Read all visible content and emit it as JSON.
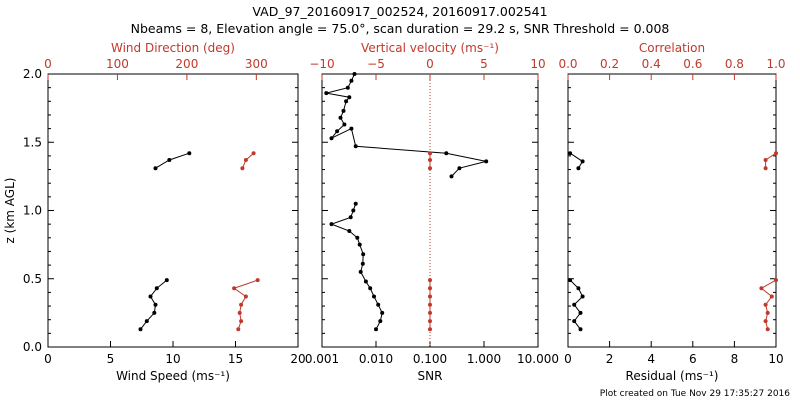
{
  "title_line1": "VAD_97_20160917_002524, 20160917.002541",
  "title_line2": "Nbeams = 8, Elevation angle = 75.0°, scan duration = 29.2 s, SNR Threshold = 0.008",
  "footer": "Plot created on Tue Nov 29 17:35:27 2016",
  "colors": {
    "axis": "#000000",
    "secondary": "#c0392b",
    "primary_series": "#000000"
  },
  "chart_data": [
    {
      "type": "line",
      "ylabel": "z (km AGL)",
      "ylim": [
        0,
        2.0
      ],
      "yticks": [
        "0.0",
        "0.5",
        "1.0",
        "1.5",
        "2.0"
      ],
      "xlabel": "Wind Speed (ms⁻¹)",
      "xlim": [
        0,
        20
      ],
      "xticks": [
        "0",
        "5",
        "10",
        "15",
        "20"
      ],
      "x2label": "Wind Direction (deg)",
      "x2lim": [
        0,
        360
      ],
      "x2ticks": [
        "0",
        "100",
        "200",
        "300"
      ],
      "series": [
        {
          "axis": "bottom",
          "color": "black",
          "points": [
            [
              11.3,
              1.42
            ],
            [
              9.7,
              1.37
            ],
            [
              8.6,
              1.31
            ]
          ]
        },
        {
          "axis": "bottom",
          "color": "black",
          "points": [
            [
              9.5,
              0.49
            ],
            [
              8.7,
              0.43
            ],
            [
              8.2,
              0.37
            ],
            [
              8.6,
              0.31
            ],
            [
              8.5,
              0.25
            ],
            [
              7.9,
              0.19
            ],
            [
              7.4,
              0.13
            ]
          ]
        },
        {
          "axis": "top",
          "color": "red",
          "points": [
            [
              296,
              1.42
            ],
            [
              285,
              1.37
            ],
            [
              280,
              1.31
            ]
          ]
        },
        {
          "axis": "top",
          "color": "red",
          "points": [
            [
              302,
              0.49
            ],
            [
              268,
              0.43
            ],
            [
              285,
              0.37
            ],
            [
              278,
              0.31
            ],
            [
              276,
              0.25
            ],
            [
              278,
              0.19
            ],
            [
              274,
              0.13
            ]
          ]
        }
      ]
    },
    {
      "type": "line",
      "xlabel": "SNR",
      "xscale": "log",
      "xlim": [
        0.001,
        10
      ],
      "xticks": [
        "0.001",
        "0.010",
        "0.100",
        "1.000",
        "10.000"
      ],
      "x2label": "Vertical velocity (ms⁻¹)",
      "x2lim": [
        -10,
        10
      ],
      "x2ticks": [
        "−10",
        "−5",
        "0",
        "5",
        "10"
      ],
      "zero_line": "dotted red line at vertical velocity 0",
      "series": [
        {
          "axis": "bottom",
          "color": "black",
          "points": [
            [
              0.004,
              2.0
            ],
            [
              0.0035,
              1.95
            ],
            [
              0.003,
              1.9
            ],
            [
              0.0012,
              1.86
            ],
            [
              0.0032,
              1.83
            ],
            [
              0.0028,
              1.8
            ],
            [
              0.0025,
              1.73
            ],
            [
              0.0022,
              1.68
            ],
            [
              0.0026,
              1.63
            ],
            [
              0.0019,
              1.58
            ],
            [
              0.0015,
              1.53
            ],
            [
              0.0035,
              1.6
            ],
            [
              0.0042,
              1.47
            ],
            [
              0.2,
              1.42
            ],
            [
              1.1,
              1.36
            ],
            [
              0.35,
              1.31
            ],
            [
              0.25,
              1.25
            ]
          ]
        },
        {
          "axis": "bottom",
          "color": "black",
          "points": [
            [
              0.0042,
              1.05
            ],
            [
              0.0038,
              1.0
            ],
            [
              0.0034,
              0.95
            ],
            [
              0.0015,
              0.9
            ],
            [
              0.0032,
              0.85
            ],
            [
              0.0045,
              0.8
            ],
            [
              0.005,
              0.75
            ],
            [
              0.0058,
              0.68
            ],
            [
              0.0057,
              0.61
            ],
            [
              0.0052,
              0.55
            ],
            [
              0.0065,
              0.48
            ],
            [
              0.0078,
              0.43
            ],
            [
              0.0092,
              0.37
            ],
            [
              0.011,
              0.31
            ],
            [
              0.013,
              0.25
            ],
            [
              0.012,
              0.19
            ],
            [
              0.01,
              0.13
            ]
          ]
        },
        {
          "axis": "top",
          "color": "red",
          "points": [
            [
              0,
              1.42
            ],
            [
              0,
              1.37
            ],
            [
              0,
              1.31
            ]
          ]
        },
        {
          "axis": "top",
          "color": "red",
          "points": [
            [
              0,
              0.49
            ],
            [
              0,
              0.43
            ],
            [
              0,
              0.37
            ],
            [
              0,
              0.31
            ],
            [
              0,
              0.25
            ],
            [
              0,
              0.19
            ],
            [
              0,
              0.13
            ]
          ]
        }
      ]
    },
    {
      "type": "line",
      "xlabel": "Residual (ms⁻¹)",
      "xlim": [
        0,
        10
      ],
      "xticks": [
        "0",
        "2",
        "4",
        "6",
        "8",
        "10"
      ],
      "x2label": "Correlation",
      "x2lim": [
        0,
        1
      ],
      "x2ticks": [
        "0.0",
        "0.2",
        "0.4",
        "0.6",
        "0.8",
        "1.0"
      ],
      "series": [
        {
          "axis": "bottom",
          "color": "black",
          "points": [
            [
              0.1,
              1.42
            ],
            [
              0.7,
              1.36
            ],
            [
              0.5,
              1.31
            ]
          ]
        },
        {
          "axis": "bottom",
          "color": "black",
          "points": [
            [
              0.1,
              0.49
            ],
            [
              0.5,
              0.43
            ],
            [
              0.7,
              0.37
            ],
            [
              0.3,
              0.31
            ],
            [
              0.6,
              0.25
            ],
            [
              0.3,
              0.19
            ],
            [
              0.6,
              0.13
            ]
          ]
        },
        {
          "axis": "top",
          "color": "red",
          "points": [
            [
              1.0,
              1.42
            ],
            [
              0.95,
              1.37
            ],
            [
              0.95,
              1.31
            ]
          ]
        },
        {
          "axis": "top",
          "color": "red",
          "points": [
            [
              1.0,
              0.49
            ],
            [
              0.93,
              0.43
            ],
            [
              0.98,
              0.37
            ],
            [
              0.95,
              0.31
            ],
            [
              0.96,
              0.25
            ],
            [
              0.95,
              0.19
            ],
            [
              0.96,
              0.13
            ]
          ]
        }
      ]
    }
  ]
}
